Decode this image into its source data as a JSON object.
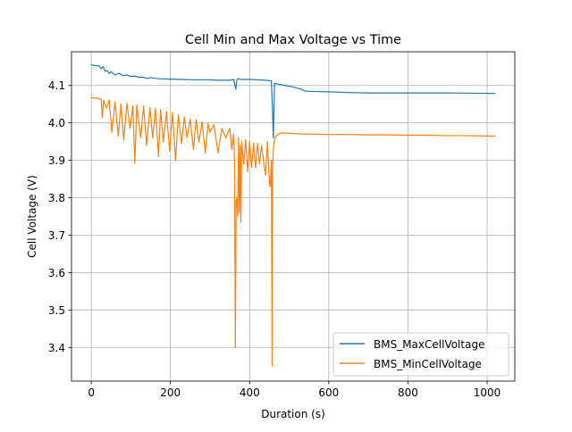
{
  "chart_data": {
    "type": "line",
    "title": "Cell Min and Max Voltage vs Time",
    "xlabel": "Duration (s)",
    "ylabel": "Cell Voltage (V)",
    "xlim": [
      -50,
      1070
    ],
    "ylim": [
      3.31,
      4.19
    ],
    "xticks": [
      0,
      200,
      400,
      600,
      800,
      1000
    ],
    "xtick_labels": [
      "0",
      "200",
      "400",
      "600",
      "800",
      "1000"
    ],
    "yticks": [
      3.4,
      3.5,
      3.6,
      3.7,
      3.8,
      3.9,
      4.0,
      4.1
    ],
    "ytick_labels": [
      "3.4",
      "3.5",
      "3.6",
      "3.7",
      "3.8",
      "3.9",
      "4.0",
      "4.1"
    ],
    "grid": true,
    "legend_position": "lower-right",
    "series": [
      {
        "name": "BMS_MaxCellVoltage",
        "color": "#1f77b4",
        "x": [
          0,
          10,
          20,
          25,
          30,
          35,
          40,
          45,
          50,
          60,
          70,
          80,
          90,
          100,
          110,
          120,
          130,
          140,
          150,
          170,
          200,
          230,
          260,
          290,
          320,
          350,
          360,
          365,
          368,
          372,
          380,
          400,
          420,
          440,
          455,
          458,
          460,
          463,
          470,
          490,
          510,
          530,
          540,
          560,
          600,
          650,
          700,
          800,
          900,
          1000,
          1020
        ],
        "y": [
          4.155,
          4.153,
          4.152,
          4.145,
          4.15,
          4.138,
          4.14,
          4.132,
          4.137,
          4.128,
          4.133,
          4.126,
          4.128,
          4.124,
          4.125,
          4.122,
          4.122,
          4.119,
          4.121,
          4.118,
          4.117,
          4.116,
          4.115,
          4.115,
          4.114,
          4.114,
          4.116,
          4.09,
          4.115,
          4.118,
          4.116,
          4.116,
          4.115,
          4.114,
          4.112,
          4.03,
          3.96,
          4.105,
          4.104,
          4.1,
          4.096,
          4.09,
          4.085,
          4.084,
          4.083,
          4.081,
          4.08,
          4.08,
          4.08,
          4.079,
          4.079
        ]
      },
      {
        "name": "BMS_MinCellVoltage",
        "color": "#ff7f0e",
        "x": [
          0,
          15,
          25,
          28,
          31,
          38,
          45,
          52,
          60,
          68,
          75,
          82,
          90,
          98,
          105,
          110,
          115,
          125,
          132,
          140,
          148,
          155,
          162,
          170,
          175,
          182,
          190,
          198,
          205,
          213,
          220,
          228,
          235,
          242,
          250,
          258,
          265,
          272,
          280,
          288,
          295,
          300,
          310,
          320,
          330,
          340,
          350,
          355,
          360,
          362,
          364,
          366,
          368,
          370,
          372,
          374,
          376,
          378,
          380,
          385,
          390,
          395,
          400,
          405,
          410,
          415,
          420,
          425,
          430,
          440,
          445,
          450,
          452,
          455,
          457,
          458,
          460,
          462,
          465,
          470,
          480,
          500,
          520,
          540,
          560,
          600,
          650,
          700,
          750,
          800,
          850,
          900,
          950,
          1000,
          1020
        ],
        "y": [
          4.067,
          4.066,
          4.063,
          4.015,
          4.06,
          4.04,
          4.061,
          3.975,
          4.055,
          3.965,
          4.05,
          3.955,
          4.052,
          3.985,
          4.045,
          3.893,
          4.048,
          3.96,
          4.045,
          3.94,
          4.04,
          3.96,
          4.038,
          3.91,
          4.035,
          3.95,
          4.03,
          3.925,
          4.028,
          3.9,
          4.022,
          3.945,
          4.015,
          3.96,
          4.01,
          3.93,
          4.008,
          3.95,
          4.003,
          3.92,
          3.998,
          3.975,
          3.995,
          3.92,
          3.985,
          3.96,
          3.985,
          3.93,
          3.97,
          3.88,
          3.4,
          3.79,
          3.8,
          3.75,
          3.96,
          3.76,
          3.94,
          3.735,
          3.95,
          3.89,
          3.955,
          3.87,
          3.95,
          3.88,
          3.945,
          3.88,
          3.945,
          3.89,
          3.94,
          3.86,
          3.95,
          3.84,
          3.83,
          3.9,
          3.35,
          3.88,
          3.93,
          3.95,
          3.962,
          3.968,
          3.973,
          3.972,
          3.971,
          3.97,
          3.97,
          3.969,
          3.969,
          3.968,
          3.968,
          3.967,
          3.967,
          3.966,
          3.966,
          3.965,
          3.965
        ]
      }
    ]
  }
}
